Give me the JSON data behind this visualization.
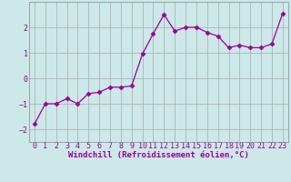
{
  "x": [
    0,
    1,
    2,
    3,
    4,
    5,
    6,
    7,
    8,
    9,
    10,
    11,
    12,
    13,
    14,
    15,
    16,
    17,
    18,
    19,
    20,
    21,
    22,
    23
  ],
  "y": [
    -1.8,
    -1.0,
    -1.0,
    -0.8,
    -1.0,
    -0.6,
    -0.55,
    -0.35,
    -0.35,
    -0.3,
    0.95,
    1.75,
    2.5,
    1.85,
    2.0,
    2.0,
    1.8,
    1.65,
    1.2,
    1.3,
    1.2,
    1.2,
    1.35,
    2.55
  ],
  "line_color": "#990099",
  "marker": "D",
  "marker_size": 2.5,
  "background_color": "#cce8e8",
  "grid_color": "#aaaaaa",
  "xlabel": "Windchill (Refroidissement éolien,°C)",
  "xlabel_fontsize": 6.5,
  "xlabel_color": "#990099",
  "tick_color": "#990099",
  "tick_fontsize": 6,
  "ylim": [
    -2.5,
    3.0
  ],
  "xlim": [
    -0.5,
    23.5
  ],
  "yticks": [
    -2,
    -1,
    0,
    1,
    2
  ],
  "xticks": [
    0,
    1,
    2,
    3,
    4,
    5,
    6,
    7,
    8,
    9,
    10,
    11,
    12,
    13,
    14,
    15,
    16,
    17,
    18,
    19,
    20,
    21,
    22,
    23
  ]
}
